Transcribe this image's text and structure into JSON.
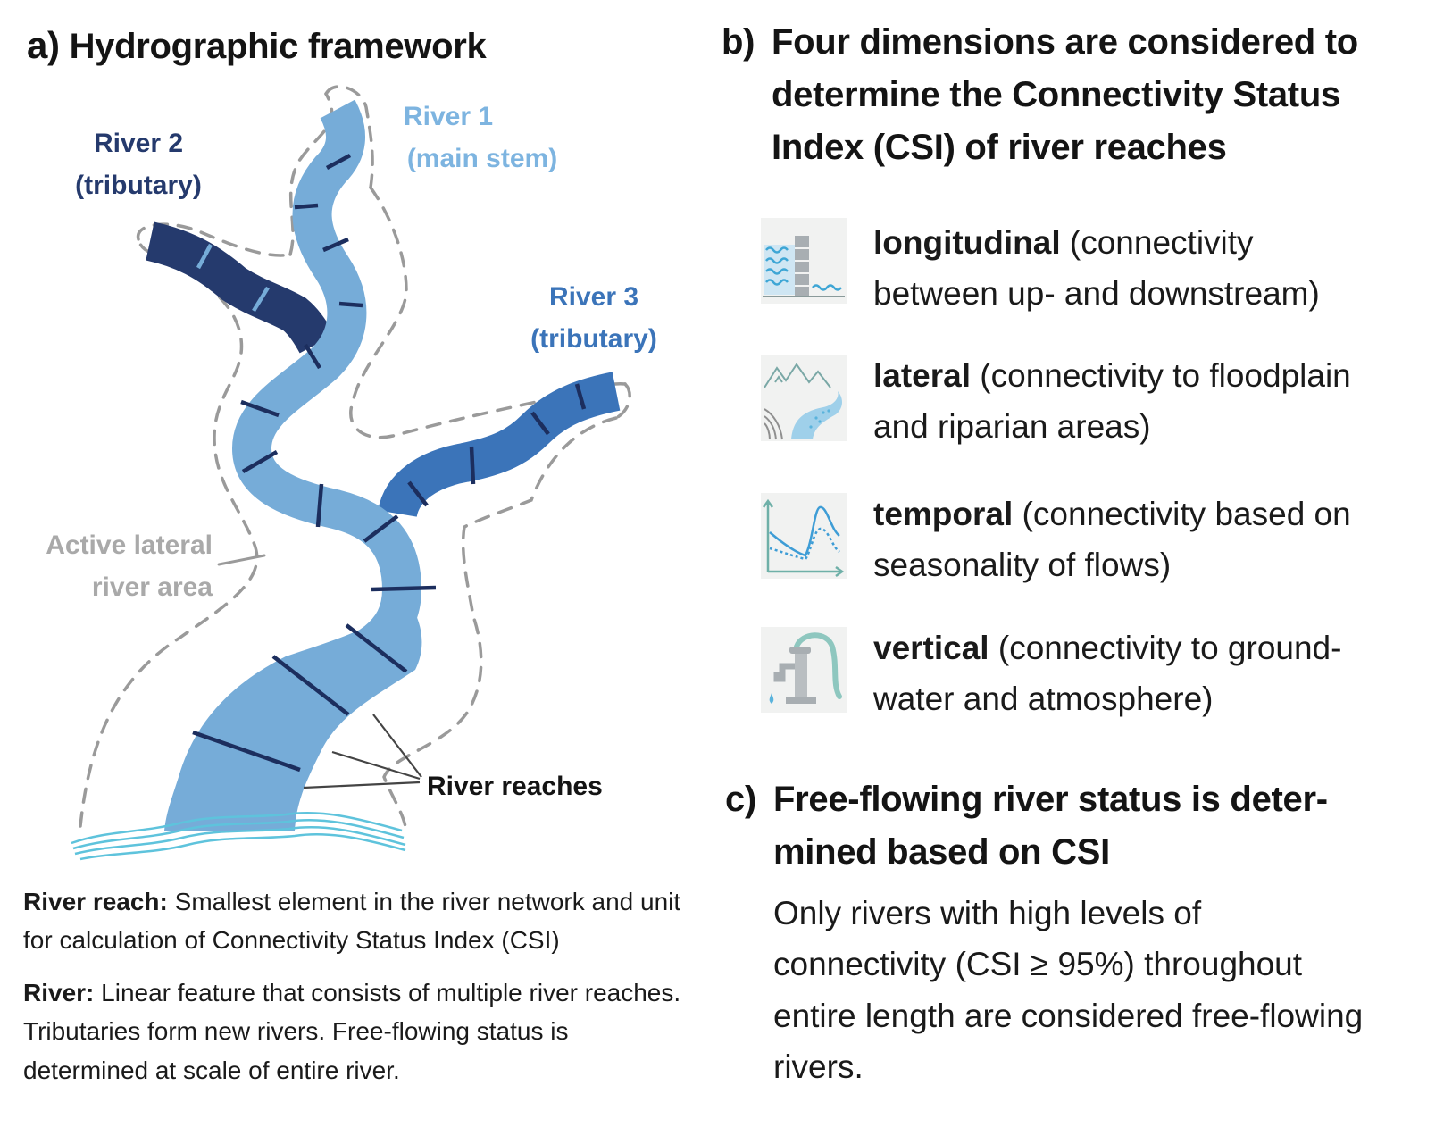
{
  "panel_a": {
    "letter": "a)",
    "title": "Hydrographic framework",
    "labels": {
      "river1_name": "River 1",
      "river1_role": "(main stem)",
      "river2_name": "River 2",
      "river2_role": "(tributary)",
      "river3_name": "River 3",
      "river3_role": "(tributary)",
      "active_area_line1": "Active lateral",
      "active_area_line2": "river area",
      "reaches": "River reaches"
    },
    "definitions": [
      {
        "term": "River reach:",
        "lines": [
          "Smallest element in the river network and unit",
          "for calculation of Connectivity Status Index (CSI)"
        ]
      },
      {
        "term": "River:",
        "lines": [
          "Linear feature that consists of multiple river reaches.",
          "Tributaries form new rivers. Free-flowing status is",
          "determined at scale of entire river."
        ]
      }
    ]
  },
  "panel_b": {
    "letter": "b)",
    "title_lines": [
      "Four dimensions are considered to",
      "determine the Connectivity Status",
      "Index (CSI) of river reaches"
    ],
    "dimensions": [
      {
        "term": "longitudinal",
        "line1": " (connectivity",
        "line2": "between up- and downstream)",
        "icon": "dam-waves-icon"
      },
      {
        "term": "lateral",
        "line1": " (connectivity to floodplain",
        "line2": "and riparian areas)",
        "icon": "floodplain-mountains-icon"
      },
      {
        "term": "temporal",
        "line1": " (connectivity based on",
        "line2": "seasonality of flows)",
        "icon": "hydrograph-icon"
      },
      {
        "term": "vertical",
        "line1": " (connectivity to ground-",
        "line2": "water and atmosphere)",
        "icon": "water-pump-icon"
      }
    ]
  },
  "panel_c": {
    "letter": "c)",
    "title_lines": [
      "Free-flowing river status is deter-",
      "mined based on CSI"
    ],
    "body_lines": [
      "Only rivers with high levels of",
      "connectivity (CSI ≥ 95%) throughout",
      "entire length are considered free-flowing",
      "rivers."
    ]
  },
  "colors": {
    "main_stem": "#76acd8",
    "tributary_dark": "#253a6d",
    "tributary_mid": "#3b74b9",
    "reach_divider": "#1c2e5e",
    "area_boundary": "#9a9a9a",
    "water_waves": "#5ec3dc"
  }
}
